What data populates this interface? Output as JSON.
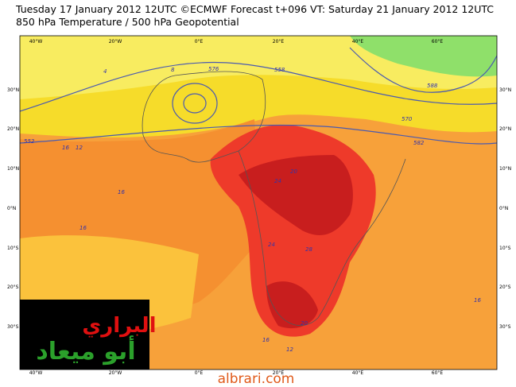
{
  "header": {
    "line1": "Tuesday 17 January 2012 12UTC ©ECMWF Forecast t+096 VT: Saturday 21 January 2012 12UTC",
    "line2": "850 hPa Temperature / 500 hPa Geopotential"
  },
  "map": {
    "lon_labels": [
      "40°W",
      "20°W",
      "0°E",
      "20°E",
      "40°E",
      "60°E"
    ],
    "lat_labels": [
      "30°N",
      "20°N",
      "10°N",
      "0°N",
      "10°S",
      "20°S",
      "30°S"
    ],
    "contour_labels": [
      "576",
      "552",
      "570",
      "582",
      "588",
      "558",
      "16",
      "12",
      "20",
      "24",
      "16",
      "16",
      "28",
      "24",
      "12",
      "16",
      "20",
      "4",
      "8",
      "16"
    ]
  },
  "watermark": {
    "line1": "البراري",
    "line2": "أبو ميعاد",
    "site": "albrari.com"
  }
}
